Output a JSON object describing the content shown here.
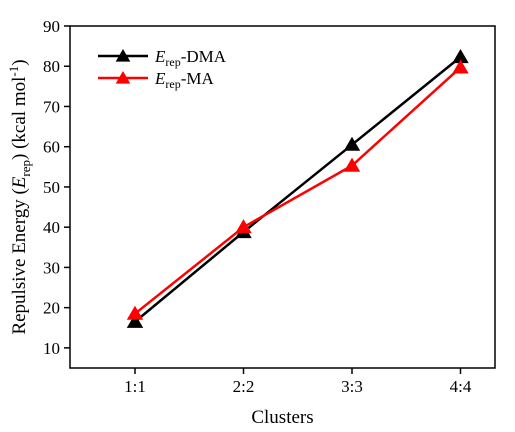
{
  "chart_data": {
    "type": "line",
    "title": "",
    "xlabel": "Clusters",
    "ylabel": {
      "prefix": "Repulsive Energy (",
      "sym": "E",
      "sub": "rep",
      "suffix": ") (kcal mol",
      "sup": "-1",
      "end": ")"
    },
    "categories": [
      "1:1",
      "2:2",
      "3:3",
      "4:4"
    ],
    "ylim": [
      5,
      90
    ],
    "yticks": [
      10,
      20,
      30,
      40,
      50,
      60,
      70,
      80,
      90
    ],
    "grid": false,
    "legend_position": "top-left",
    "series": [
      {
        "name": {
          "sym": "E",
          "sub": "rep",
          "rest": "-DMA"
        },
        "color": "#000000",
        "marker": "triangle-up",
        "values": [
          16.5,
          38.8,
          60.5,
          82.3
        ]
      },
      {
        "name": {
          "sym": "E",
          "sub": "rep",
          "rest": "-MA"
        },
        "color": "#ff0000",
        "marker": "triangle-up",
        "values": [
          18.5,
          40.0,
          55.3,
          79.7
        ]
      }
    ]
  }
}
